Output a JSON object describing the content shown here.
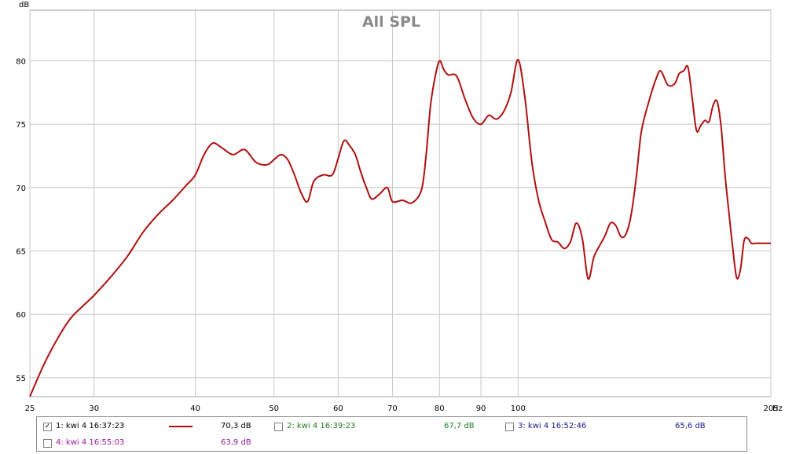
{
  "chart_data": {
    "type": "line",
    "title": "All SPL",
    "ylabel": "dB",
    "xunit": "Hz",
    "xscale": "log",
    "xlim": [
      25,
      205
    ],
    "ylim": [
      53.5,
      84
    ],
    "x_ticks": [
      "25",
      "30",
      "40",
      "50",
      "60",
      "70",
      "80",
      "90",
      "100",
      "205"
    ],
    "x_tick_values": [
      25,
      30,
      40,
      50,
      60,
      70,
      80,
      90,
      100,
      205
    ],
    "y_ticks": [
      "55",
      "60",
      "65",
      "70",
      "75",
      "80"
    ],
    "y_tick_values": [
      55,
      60,
      65,
      70,
      75,
      80
    ],
    "grid": true,
    "series": [
      {
        "name": "1: kwi 4 16:37:23",
        "color": "#b01010",
        "x": [
          25,
          26,
          27,
          28,
          29,
          30,
          31.5,
          33,
          34.5,
          36,
          37.5,
          39,
          40,
          41,
          42,
          43,
          44.5,
          46,
          47.5,
          49,
          50,
          51,
          52,
          53,
          54,
          55,
          56,
          57.5,
          59,
          60,
          61,
          62,
          63,
          64,
          65,
          66,
          67.5,
          69,
          70,
          72,
          74,
          76,
          77,
          78,
          79,
          80,
          81,
          82,
          84,
          86,
          88,
          90,
          92,
          94,
          96,
          98,
          100,
          102,
          104,
          106,
          108,
          110,
          112,
          114,
          116,
          118,
          120,
          122,
          124,
          126,
          128,
          130,
          132,
          134,
          136,
          138,
          140,
          142,
          145,
          148,
          150,
          153,
          156,
          158,
          160,
          162,
          164,
          166,
          168,
          170,
          172,
          174,
          176,
          178,
          180,
          182,
          184,
          186,
          188,
          190,
          192,
          194,
          196,
          198,
          200,
          202,
          204,
          205
        ],
        "y": [
          53.5,
          56,
          58,
          59.6,
          60.6,
          61.5,
          63,
          64.6,
          66.5,
          67.9,
          69,
          70.2,
          71,
          72.6,
          73.5,
          73.2,
          72.6,
          73,
          72,
          71.8,
          72.2,
          72.6,
          72.2,
          71,
          69.6,
          68.9,
          70.5,
          71,
          71,
          72.3,
          73.7,
          73.3,
          72.6,
          71.2,
          70,
          69.1,
          69.5,
          70,
          68.9,
          69,
          68.8,
          69.8,
          72.5,
          76.5,
          78.7,
          80,
          79.3,
          78.9,
          78.8,
          77,
          75.5,
          75,
          75.7,
          75.4,
          76,
          77.5,
          80.1,
          77,
          72,
          69,
          67.3,
          65.9,
          65.7,
          65.2,
          65.7,
          67.2,
          66,
          62.8,
          64.5,
          65.4,
          66.2,
          67.2,
          67,
          66.1,
          66.4,
          68,
          71,
          74.5,
          76.8,
          78.6,
          79.2,
          78.1,
          78.2,
          79,
          79.2,
          79.5,
          77,
          74.5,
          74.9,
          75.3,
          75.2,
          76.5,
          76.8,
          74.8,
          71,
          68,
          65.2,
          62.9,
          63.5,
          65.8,
          66,
          65.6,
          65.6,
          65.6,
          65.6,
          65.6,
          65.6,
          65.6
        ],
        "cursor_value": "70,3 dB"
      }
    ]
  },
  "legend": [
    {
      "label": "1: kwi 4 16:37:23",
      "value": "70,3 dB",
      "checked": true,
      "color": "#b01010"
    },
    {
      "label": "2: kwi 4 16:39:23",
      "value": "67,7 dB",
      "checked": false,
      "color": "#1f7a1f"
    },
    {
      "label": "3: kwi 4 16:52:46",
      "value": "65,6 dB",
      "checked": false,
      "color": "#1a1a8c"
    },
    {
      "label": "4: kwi 4 16:55:03",
      "value": "63,9 dB",
      "checked": false,
      "color": "#9a1a9a"
    }
  ]
}
